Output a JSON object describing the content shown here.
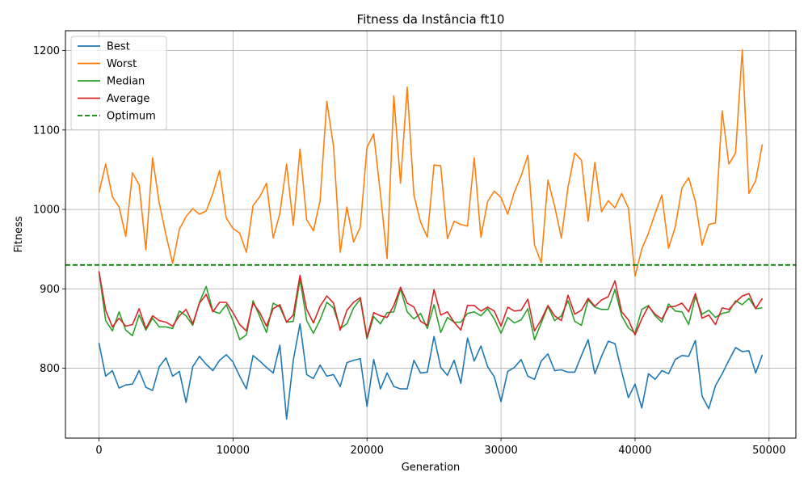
{
  "chart_data": {
    "type": "line",
    "title": "Fitness da Instância ft10",
    "xlabel": "Generation",
    "ylabel": "Fitness",
    "xlim": [
      -2500,
      52000
    ],
    "ylim": [
      712,
      1225
    ],
    "xticks": [
      0,
      10000,
      20000,
      30000,
      40000,
      50000
    ],
    "yticks": [
      800,
      900,
      1000,
      1100,
      1200
    ],
    "grid": true,
    "legend_position": "upper-left",
    "x_start": 0,
    "x_step": 500,
    "series": [
      {
        "name": "Best",
        "color": "#1f77b4",
        "style": "solid",
        "values": [
          832,
          790,
          797,
          775,
          779,
          780,
          797,
          776,
          772,
          802,
          813,
          790,
          796,
          757,
          802,
          815,
          805,
          797,
          810,
          817,
          808,
          790,
          774,
          816,
          809,
          801,
          794,
          829,
          736,
          810,
          856,
          792,
          787,
          804,
          790,
          792,
          777,
          807,
          810,
          812,
          752,
          811,
          774,
          794,
          777,
          774,
          774,
          810,
          794,
          795,
          840,
          801,
          791,
          810,
          781,
          838,
          809,
          828,
          802,
          789,
          758,
          796,
          801,
          811,
          790,
          786,
          809,
          818,
          797,
          798,
          795,
          795,
          816,
          836,
          793,
          815,
          834,
          831,
          796,
          763,
          780,
          750,
          793,
          786,
          797,
          793,
          811,
          816,
          815,
          835,
          765,
          749,
          778,
          793,
          810,
          826,
          821,
          822,
          794,
          817
        ]
      },
      {
        "name": "Worst",
        "color": "#ff7f0e",
        "style": "solid",
        "values": [
          1021,
          1057,
          1016,
          1003,
          966,
          1046,
          1031,
          949,
          1065,
          1008,
          968,
          932,
          975,
          991,
          1001,
          994,
          998,
          1020,
          1049,
          989,
          976,
          970,
          946,
          1005,
          1016,
          1033,
          964,
          995,
          1057,
          980,
          1076,
          987,
          973,
          1011,
          1136,
          1080,
          946,
          1003,
          959,
          978,
          1078,
          1095,
          1020,
          938,
          1143,
          1033,
          1154,
          1018,
          984,
          965,
          1056,
          1055,
          963,
          985,
          981,
          979,
          1065,
          965,
          1010,
          1023,
          1015,
          994,
          1022,
          1042,
          1068,
          955,
          933,
          1037,
          1004,
          964,
          1028,
          1071,
          1062,
          985,
          1059,
          997,
          1011,
          1002,
          1020,
          1002,
          916,
          950,
          970,
          995,
          1018,
          951,
          978,
          1027,
          1040,
          1010,
          955,
          981,
          983,
          1124,
          1057,
          1071,
          1201,
          1020,
          1036,
          1082
        ]
      },
      {
        "name": "Median",
        "color": "#2ca02c",
        "style": "solid",
        "values": [
          922,
          860,
          847,
          871,
          848,
          841,
          867,
          848,
          863,
          852,
          852,
          850,
          872,
          866,
          854,
          883,
          903,
          872,
          869,
          880,
          860,
          836,
          842,
          885,
          865,
          845,
          882,
          877,
          858,
          859,
          912,
          860,
          844,
          861,
          883,
          876,
          850,
          856,
          876,
          887,
          837,
          865,
          856,
          870,
          871,
          900,
          871,
          862,
          869,
          850,
          880,
          845,
          864,
          858,
          858,
          869,
          871,
          866,
          875,
          862,
          844,
          864,
          857,
          861,
          875,
          836,
          857,
          878,
          860,
          866,
          885,
          859,
          854,
          886,
          877,
          874,
          874,
          899,
          866,
          851,
          844,
          874,
          879,
          866,
          858,
          881,
          872,
          871,
          855,
          890,
          868,
          873,
          864,
          869,
          871,
          885,
          880,
          888,
          875,
          876
        ]
      },
      {
        "name": "Average",
        "color": "#d62728",
        "style": "solid",
        "values": [
          922,
          873,
          852,
          863,
          853,
          855,
          875,
          850,
          866,
          860,
          858,
          853,
          866,
          874,
          856,
          882,
          893,
          871,
          883,
          883,
          870,
          855,
          847,
          882,
          870,
          853,
          875,
          880,
          858,
          867,
          917,
          874,
          857,
          878,
          891,
          882,
          848,
          873,
          883,
          889,
          839,
          870,
          866,
          864,
          879,
          902,
          882,
          877,
          859,
          854,
          899,
          867,
          871,
          858,
          848,
          879,
          879,
          872,
          877,
          872,
          853,
          877,
          872,
          873,
          887,
          847,
          861,
          879,
          866,
          860,
          892,
          868,
          873,
          888,
          878,
          886,
          890,
          910,
          871,
          861,
          842,
          862,
          878,
          868,
          862,
          877,
          878,
          882,
          871,
          894,
          863,
          867,
          855,
          876,
          874,
          883,
          891,
          894,
          875,
          888
        ]
      },
      {
        "name": "Optimum",
        "color": "#008000",
        "style": "dashed",
        "constant": 930
      }
    ]
  }
}
